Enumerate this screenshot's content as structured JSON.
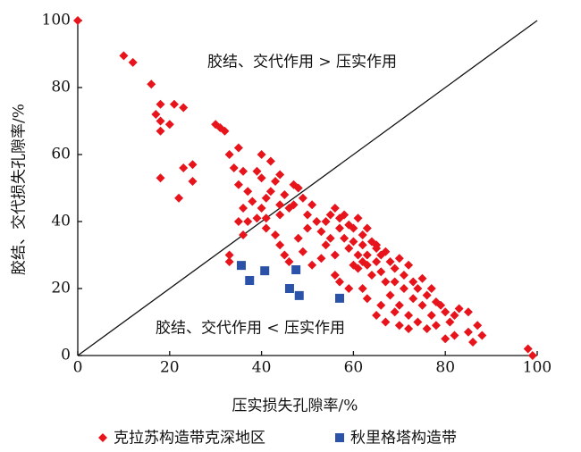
{
  "chart_data": {
    "type": "scatter",
    "x_label": "压实损失孔隙率/%",
    "y_label": "胶结、交代损失孔隙率/%",
    "annotations": [
      "胶结、交代作用 > 压实作用",
      "胶结、交代作用 < 压实作用"
    ],
    "xlim": [
      0,
      100
    ],
    "ylim": [
      0,
      100
    ],
    "xticks": [
      0,
      20,
      40,
      60,
      80,
      100
    ],
    "yticks": [
      0,
      20,
      40,
      60,
      80,
      100
    ],
    "series": [
      {
        "name": "克拉苏构造带克深地区",
        "color": "#e8141c",
        "marker": "diamond",
        "x": [
          0,
          10,
          12,
          16,
          17,
          18,
          18,
          18,
          20,
          21,
          23,
          18,
          22,
          23,
          25,
          25,
          30,
          31,
          32,
          33,
          34,
          35,
          36,
          35,
          37,
          39,
          38,
          40,
          41,
          40,
          42,
          43,
          44,
          45,
          44,
          46,
          48,
          49,
          47,
          36,
          35,
          37,
          36,
          33,
          33,
          39,
          41,
          43,
          44,
          45,
          46,
          48,
          49,
          50,
          50,
          51,
          52,
          53,
          54,
          55,
          53,
          51,
          56,
          57,
          58,
          58,
          59,
          60,
          60,
          61,
          61,
          62,
          62,
          63,
          63,
          64,
          64,
          65,
          65,
          66,
          66,
          67,
          67,
          68,
          68,
          69,
          69,
          70,
          70,
          71,
          71,
          72,
          72,
          73,
          73,
          74,
          74,
          75,
          75,
          76,
          76,
          77,
          77,
          78,
          78,
          79,
          80,
          81,
          82,
          83,
          85,
          86,
          87,
          88,
          85,
          82,
          80,
          56,
          57,
          59,
          60,
          62,
          63,
          65,
          66,
          67,
          69,
          70,
          72,
          55,
          56,
          57,
          59,
          61,
          54,
          63,
          65,
          62,
          98,
          99,
          42,
          40,
          47,
          44,
          41
        ],
        "values": [
          100,
          89.5,
          87.5,
          81,
          72,
          75,
          70,
          67,
          69,
          75,
          74,
          53,
          47,
          56,
          57,
          52,
          69,
          68,
          67,
          60,
          56,
          62,
          55,
          51,
          49,
          55,
          46,
          53,
          47,
          44,
          49,
          52,
          54,
          48,
          42,
          44,
          50,
          47,
          45,
          44,
          40,
          40,
          36,
          28,
          30,
          41,
          38,
          36,
          33,
          30,
          28,
          35,
          31,
          38,
          42,
          45,
          40,
          37,
          33,
          35,
          29,
          27,
          30,
          38,
          42,
          35,
          32,
          38,
          34,
          30,
          26,
          36,
          33,
          30,
          27,
          34,
          24,
          32,
          28,
          30,
          25,
          22,
          31,
          28,
          18,
          26,
          22,
          29,
          15,
          24,
          20,
          27,
          12,
          22,
          17,
          20,
          10,
          23,
          15,
          18,
          8,
          20,
          12,
          16,
          9,
          15,
          13,
          10,
          12,
          14,
          7,
          4,
          9,
          6,
          13,
          6,
          5,
          24,
          22,
          20,
          27,
          20,
          17,
          12,
          15,
          10,
          13,
          9,
          8,
          42,
          44,
          41,
          39,
          41,
          40,
          38,
          33,
          28,
          2,
          0,
          58,
          60,
          51,
          45,
          41
        ]
      },
      {
        "name": "秋里格塔构造带",
        "color": "#2a52a8",
        "marker": "square",
        "x": [
          35.6,
          40.7,
          47.5,
          37.4,
          46.1,
          48.2,
          57
        ],
        "values": [
          26.9,
          25.3,
          25.6,
          22.4,
          20,
          17.9,
          17.1
        ]
      }
    ]
  }
}
